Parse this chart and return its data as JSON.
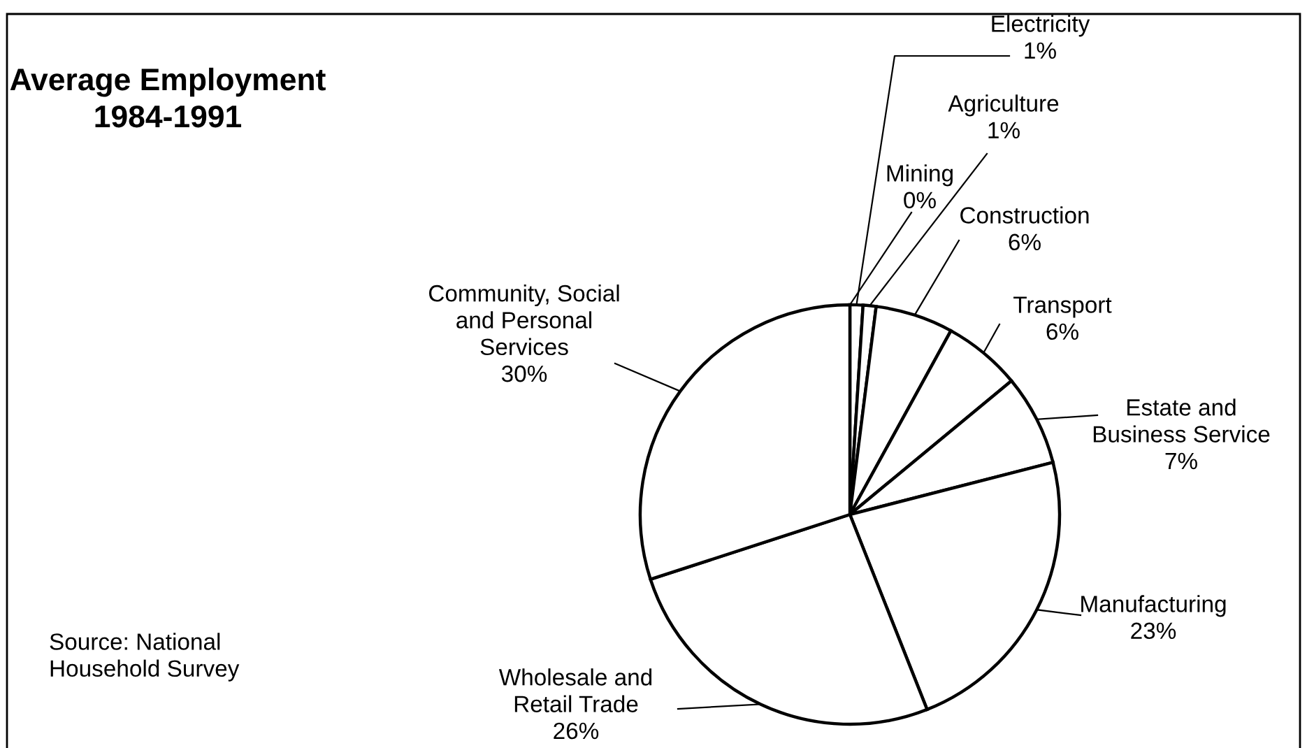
{
  "chart_data": {
    "type": "pie",
    "title": "Average Employment\n1984-1991",
    "categories": [
      "Mining",
      "Electricity",
      "Agriculture",
      "Construction",
      "Transport",
      "Estate and\nBusiness Service",
      "Manufacturing",
      "Wholesale and\nRetail Trade",
      "Community, Social\nand Personal\nServices"
    ],
    "values": [
      0,
      1,
      1,
      6,
      6,
      7,
      23,
      26,
      30
    ],
    "value_labels": [
      "0%",
      "1%",
      "1%",
      "6%",
      "6%",
      "7%",
      "23%",
      "26%",
      "30%"
    ],
    "colors": [
      "#ffffff",
      "#ffffff",
      "#ffffff",
      "#ffffff",
      "#ffffff",
      "#ffffff",
      "#ffffff",
      "#ffffff",
      "#ffffff"
    ],
    "annotations": [
      "Source: National\nHousehold Survey"
    ],
    "legend": false
  }
}
